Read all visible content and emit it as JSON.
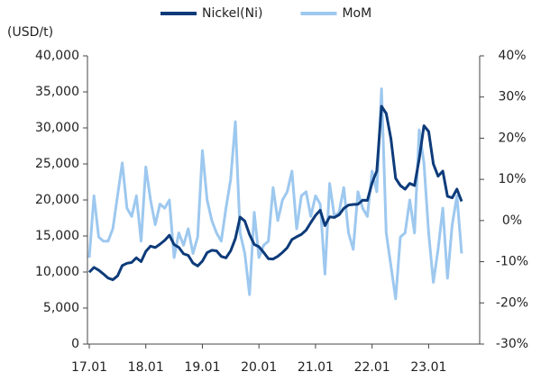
{
  "chart_data": {
    "type": "line",
    "legend": {
      "position": "top"
    },
    "y_label": "(USD/t)",
    "categories": [
      "17.01",
      null,
      null,
      null,
      null,
      null,
      null,
      null,
      null,
      null,
      null,
      null,
      "18.01",
      null,
      null,
      null,
      null,
      null,
      null,
      null,
      null,
      null,
      null,
      null,
      "19.01",
      null,
      null,
      null,
      null,
      null,
      null,
      null,
      null,
      null,
      null,
      null,
      "20.01",
      null,
      null,
      null,
      null,
      null,
      null,
      null,
      null,
      null,
      null,
      null,
      "21.01",
      null,
      null,
      null,
      null,
      null,
      null,
      null,
      null,
      null,
      null,
      null,
      "22.01",
      null,
      null,
      null,
      null,
      null,
      null,
      null,
      null,
      null,
      null,
      null,
      "23.01",
      null,
      null,
      null,
      null,
      null,
      null,
      null
    ],
    "series": [
      {
        "name": "Nickel(Ni)",
        "color": "#0d3b7a",
        "axis": "y",
        "values": [
          9970,
          10640,
          10260,
          9730,
          9160,
          8930,
          9460,
          10890,
          11210,
          11330,
          11970,
          11440,
          12860,
          13590,
          13400,
          13860,
          14390,
          15100,
          13800,
          13420,
          12530,
          12310,
          11240,
          10840,
          11510,
          12690,
          13020,
          12940,
          12170,
          11960,
          12940,
          14650,
          17620,
          17070,
          15200,
          13830,
          13510,
          12720,
          11850,
          11800,
          12180,
          12720,
          13370,
          14510,
          14890,
          15220,
          15810,
          16860,
          17860,
          18570,
          16450,
          17650,
          17570,
          17940,
          18830,
          19290,
          19380,
          19400,
          19970,
          19940,
          22360,
          24020,
          33000,
          32000,
          28500,
          23000,
          22000,
          21500,
          22300,
          22000,
          25700,
          30300,
          29500,
          25000,
          23300,
          24000,
          20500,
          20300,
          21500,
          19800
        ]
      },
      {
        "name": "MoM",
        "color": "#9dc8ef",
        "axis": "y2",
        "values": [
          -9,
          6,
          -4,
          -5,
          -5,
          -2,
          6,
          14,
          3,
          1,
          6,
          -5,
          13,
          5,
          -1,
          4,
          3,
          5,
          -9,
          -3,
          -6,
          -2,
          -8,
          -4,
          17,
          5,
          0,
          -3,
          -5,
          3,
          10,
          24,
          -3,
          -8,
          -18,
          2,
          -9,
          -6,
          -5,
          8,
          0,
          5,
          7,
          12,
          -2,
          6,
          7,
          1,
          6,
          4,
          -13,
          9,
          1,
          2,
          8,
          -3,
          -7,
          7,
          3,
          1,
          12,
          7,
          32,
          -3,
          -11,
          -19,
          -4,
          -3,
          5,
          -3,
          22,
          14,
          -3,
          -15,
          -7,
          3,
          -14,
          -1,
          6,
          -8
        ]
      }
    ],
    "ylim": [
      0,
      40000
    ],
    "yticks": [
      0,
      {
        "value": 5000,
        "label": "5,000"
      },
      {
        "value": 10000,
        "label": "10,000"
      },
      {
        "value": 15000,
        "label": "15,000"
      },
      {
        "value": 20000,
        "label": "20,000"
      },
      {
        "value": 25000,
        "label": "25,000"
      },
      {
        "value": 30000,
        "label": "30,000"
      },
      {
        "value": 35000,
        "label": "35,000"
      },
      {
        "value": 40000,
        "label": "40,000"
      }
    ],
    "y2lim": [
      -30,
      40
    ],
    "y2ticks": [
      {
        "value": -30,
        "label": "-30%"
      },
      {
        "value": -20,
        "label": "-20%"
      },
      {
        "value": -10,
        "label": "-10%"
      },
      {
        "value": 0,
        "label": "0%"
      },
      {
        "value": 10,
        "label": "10%"
      },
      {
        "value": 20,
        "label": "20%"
      },
      {
        "value": 30,
        "label": "30%"
      },
      {
        "value": 40,
        "label": "40%"
      }
    ]
  }
}
